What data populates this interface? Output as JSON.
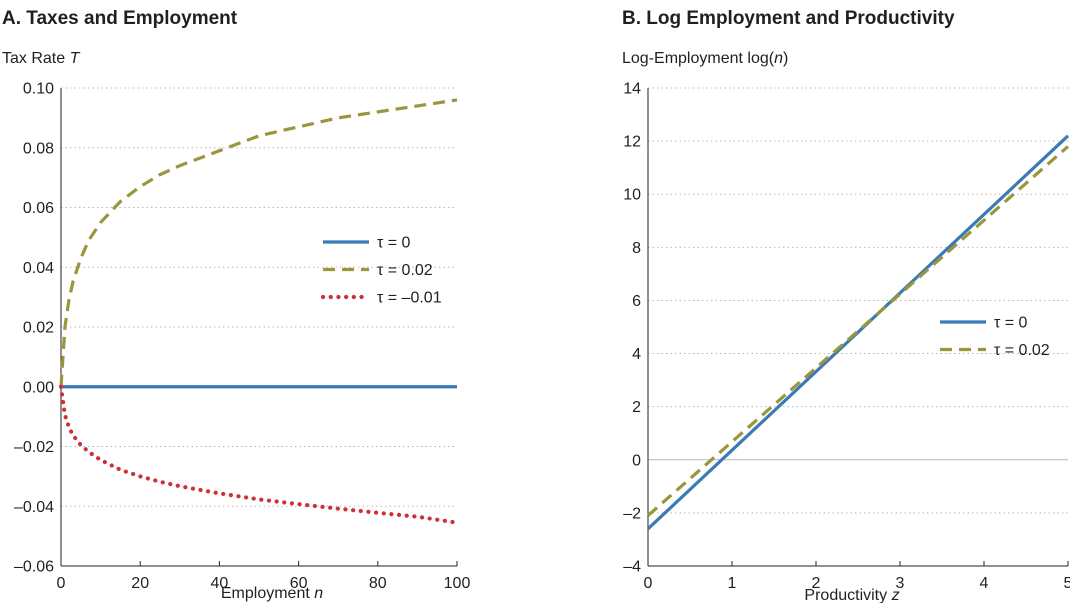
{
  "colors": {
    "blue": "#3a7ab5",
    "olive": "#99963c",
    "red": "#d03035"
  },
  "chart_data": [
    {
      "type": "line",
      "title": "A. Taxes and Employment",
      "ylabel_main": "Tax Rate ",
      "ylabel_italic": "T",
      "xlabel_main": "Employment ",
      "xlabel_italic": "n",
      "xlim": [
        0,
        100
      ],
      "ylim": [
        -0.06,
        0.1
      ],
      "xticks": [
        0,
        20,
        40,
        60,
        80,
        100
      ],
      "xtick_labels": [
        "0",
        "20",
        "40",
        "60",
        "80",
        "100"
      ],
      "yticks": [
        -0.06,
        -0.04,
        -0.02,
        0.0,
        0.02,
        0.04,
        0.06,
        0.08,
        0.1
      ],
      "ytick_labels": [
        "–0.06",
        "–0.04",
        "–0.02",
        "0.00",
        "0.02",
        "0.04",
        "0.06",
        "0.08",
        "0.10"
      ],
      "grid": true,
      "legend_position": "center-right",
      "series": [
        {
          "name": "τ = 0",
          "color": "blue",
          "style": "solid",
          "x": [
            0,
            100
          ],
          "y": [
            0,
            0
          ]
        },
        {
          "name": "τ = 0.02",
          "color": "olive",
          "style": "dashed",
          "x": [
            0,
            1,
            2,
            3,
            5,
            7,
            10,
            15,
            20,
            25,
            30,
            40,
            50,
            60,
            70,
            80,
            90,
            100
          ],
          "y": [
            0,
            0.02,
            0.029,
            0.035,
            0.043,
            0.049,
            0.055,
            0.062,
            0.067,
            0.071,
            0.074,
            0.079,
            0.084,
            0.087,
            0.09,
            0.092,
            0.094,
            0.096
          ]
        },
        {
          "name": "τ = –0.01",
          "color": "red",
          "style": "dotted",
          "x": [
            0,
            1,
            2,
            3,
            5,
            7,
            10,
            15,
            20,
            25,
            30,
            40,
            50,
            60,
            70,
            80,
            90,
            100
          ],
          "y": [
            0,
            -0.0095,
            -0.0135,
            -0.0162,
            -0.0195,
            -0.0218,
            -0.0245,
            -0.0278,
            -0.03,
            -0.0318,
            -0.0333,
            -0.0357,
            -0.0377,
            -0.0393,
            -0.0408,
            -0.0422,
            -0.0435,
            -0.0455
          ]
        }
      ]
    },
    {
      "type": "line",
      "title": "B. Log Employment and Productivity",
      "ylabel_main": "Log-Employment log(",
      "ylabel_italic": "n",
      "ylabel_tail": ")",
      "xlabel_main": "Productivity ",
      "xlabel_italic": "z",
      "xlim": [
        0,
        5
      ],
      "ylim": [
        -4,
        14
      ],
      "xticks": [
        0,
        1,
        2,
        3,
        4,
        5
      ],
      "xtick_labels": [
        "0",
        "1",
        "2",
        "3",
        "4",
        "5"
      ],
      "yticks": [
        -4,
        -2,
        0,
        2,
        4,
        6,
        8,
        10,
        12,
        14
      ],
      "ytick_labels": [
        "–4",
        "–2",
        "0",
        "2",
        "4",
        "6",
        "8",
        "10",
        "12",
        "14"
      ],
      "grid": true,
      "legend_position": "center-right",
      "series": [
        {
          "name": "τ = 0",
          "color": "blue",
          "style": "solid",
          "x": [
            0,
            5
          ],
          "y": [
            -2.6,
            12.2
          ]
        },
        {
          "name": "τ = 0.02",
          "color": "olive",
          "style": "dashed",
          "x": [
            0,
            5
          ],
          "y": [
            -2.1,
            11.8
          ]
        }
      ]
    }
  ]
}
